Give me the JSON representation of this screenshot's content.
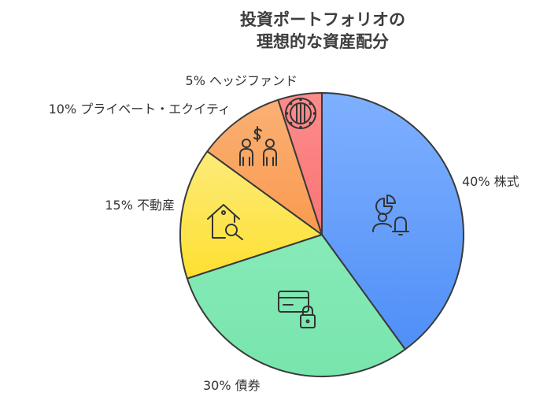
{
  "chart_data": {
    "type": "pie",
    "title_lines": [
      "投資ポートフォリオの",
      "理想的な資産配分"
    ],
    "slices": [
      {
        "label": "株式",
        "value": 40,
        "text": "40% 株式",
        "color": "#5e99fb",
        "icon": "pie-chart-user-bell-icon"
      },
      {
        "label": "債券",
        "value": 30,
        "text": "30% 債券",
        "color": "#7ee8b2",
        "icon": "credit-card-lock-icon"
      },
      {
        "label": "不動産",
        "value": 15,
        "text": "15% 不動産",
        "color": "#fde443",
        "icon": "house-search-icon"
      },
      {
        "label": "プライベート・エクイティ",
        "value": 10,
        "text": "10% プライベート・エクイティ",
        "color": "#fba35e",
        "icon": "people-dollar-icon"
      },
      {
        "label": "ヘッジファンド",
        "value": 5,
        "text": "5% ヘッジファンド",
        "color": "#fb7e7e",
        "icon": "vault-icon"
      }
    ],
    "start_angle_deg": 0,
    "direction": "clockwise"
  }
}
